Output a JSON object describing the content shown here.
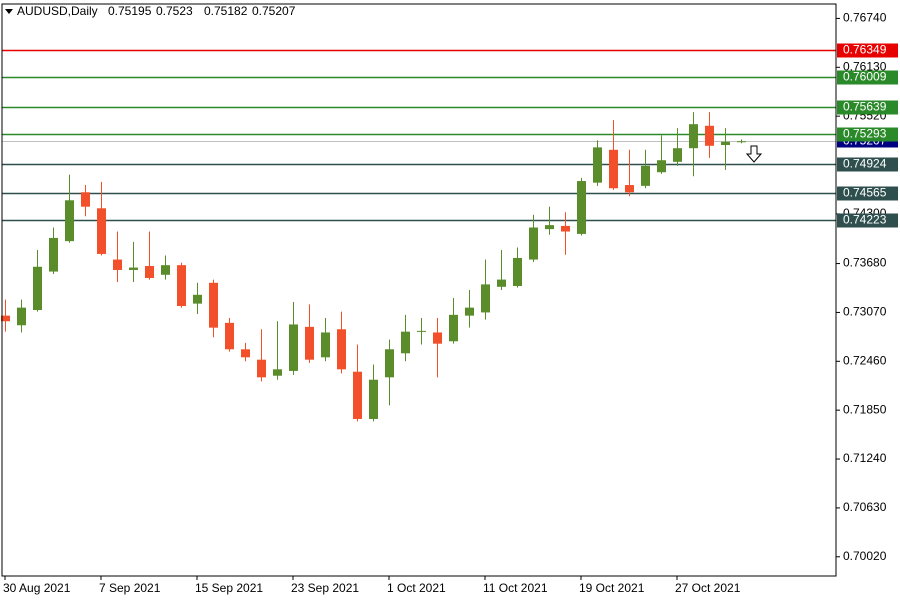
{
  "chart_data": {
    "type": "candlestick",
    "title": "AUDUSD,Daily",
    "categories": [
      "30 Aug 2021",
      null,
      null,
      null,
      null,
      null,
      "7 Sep 2021",
      null,
      null,
      null,
      null,
      null,
      "15 Sep 2021",
      null,
      null,
      null,
      null,
      null,
      "23 Sep 2021",
      null,
      null,
      null,
      null,
      null,
      "1 Oct 2021",
      null,
      null,
      null,
      null,
      null,
      "11 Oct 2021",
      null,
      null,
      null,
      null,
      null,
      "19 Oct 2021",
      null,
      null,
      null,
      null,
      null,
      "27 Oct 2021",
      null,
      null,
      null,
      null
    ],
    "open": [
      0.7303,
      0.7291,
      0.731,
      0.7358,
      0.7396,
      0.7457,
      0.7437,
      0.7373,
      0.736,
      0.7365,
      0.7354,
      0.7366,
      0.7318,
      0.7344,
      0.7294,
      0.7261,
      0.7248,
      0.7228,
      0.7234,
      0.7289,
      0.7251,
      0.7286,
      0.7233,
      0.7174,
      0.7226,
      0.7256,
      0.7283,
      0.7282,
      0.7271,
      0.7303,
      0.7307,
      0.7339,
      0.734,
      0.7373,
      0.7411,
      0.7415,
      0.7405,
      0.7469,
      0.751,
      0.7466,
      0.7465,
      0.7482,
      0.7495,
      0.7512,
      0.754,
      0.7516,
      0.75195
    ],
    "high": [
      0.7323,
      0.7323,
      0.7385,
      0.7413,
      0.7479,
      0.7466,
      0.747,
      0.7408,
      0.7395,
      0.7408,
      0.7378,
      0.7369,
      0.7344,
      0.7348,
      0.73,
      0.7269,
      0.7286,
      0.7296,
      0.732,
      0.7317,
      0.73,
      0.7308,
      0.7267,
      0.7242,
      0.7273,
      0.7304,
      0.73,
      0.73,
      0.7325,
      0.7335,
      0.7373,
      0.7385,
      0.7388,
      0.7429,
      0.7439,
      0.7432,
      0.7475,
      0.7522,
      0.7547,
      0.751,
      0.751,
      0.7528,
      0.7537,
      0.7557,
      0.7557,
      0.7537,
      0.7523
    ],
    "low": [
      0.7283,
      0.7282,
      0.7308,
      0.7355,
      0.7394,
      0.7427,
      0.7378,
      0.7345,
      0.7345,
      0.7348,
      0.7348,
      0.7313,
      0.7305,
      0.7276,
      0.7258,
      0.7246,
      0.7221,
      0.7223,
      0.7229,
      0.7244,
      0.7246,
      0.7231,
      0.7171,
      0.7171,
      0.7191,
      0.7246,
      0.7267,
      0.7226,
      0.7268,
      0.7288,
      0.7298,
      0.7335,
      0.7338,
      0.737,
      0.7404,
      0.7379,
      0.7403,
      0.7465,
      0.746,
      0.7452,
      0.7462,
      0.748,
      0.749,
      0.7477,
      0.75,
      0.7485,
      0.75182
    ],
    "close": [
      0.7296,
      0.7313,
      0.7364,
      0.74,
      0.7447,
      0.7439,
      0.738,
      0.736,
      0.7363,
      0.735,
      0.7366,
      0.7315,
      0.7329,
      0.7288,
      0.7261,
      0.7251,
      0.7226,
      0.7236,
      0.7292,
      0.7248,
      0.7282,
      0.7236,
      0.7174,
      0.7223,
      0.7261,
      0.7283,
      0.7284,
      0.7268,
      0.7304,
      0.7313,
      0.7342,
      0.7348,
      0.7375,
      0.7413,
      0.7416,
      0.7408,
      0.7471,
      0.7513,
      0.7462,
      0.7457,
      0.749,
      0.7497,
      0.7512,
      0.7542,
      0.7515,
      0.752,
      0.75207
    ],
    "up_color": "#5a8c2c",
    "down_color": "#f2502a",
    "ylim": [
      0.6978,
      0.7692
    ],
    "yticks": [
      {
        "value": 0.7674,
        "label": "0.76740"
      },
      {
        "value": 0.7613,
        "label": "0.76130"
      },
      {
        "value": 0.7552,
        "label": "0.75520"
      },
      {
        "value": 0.743,
        "label": "0.74300"
      },
      {
        "value": 0.7368,
        "label": "0.73680"
      },
      {
        "value": 0.7307,
        "label": "0.73070"
      },
      {
        "value": 0.7246,
        "label": "0.72460"
      },
      {
        "value": 0.7185,
        "label": "0.71850"
      },
      {
        "value": 0.7124,
        "label": "0.71240"
      },
      {
        "value": 0.7063,
        "label": "0.70630"
      },
      {
        "value": 0.7002,
        "label": "0.70020"
      }
    ],
    "levels": [
      {
        "value": 0.76349,
        "color": "#e60000"
      },
      {
        "value": 0.76009,
        "color": "#2a8a2a"
      },
      {
        "value": 0.75639,
        "color": "#2a8a2a"
      },
      {
        "value": 0.75293,
        "color": "#2a8a2a"
      },
      {
        "value": 0.74924,
        "color": "#2f4f4f"
      },
      {
        "value": 0.74565,
        "color": "#2f4f4f"
      },
      {
        "value": 0.74223,
        "color": "#2f4f4f"
      }
    ],
    "price_line_color": "#000080"
  }
}
